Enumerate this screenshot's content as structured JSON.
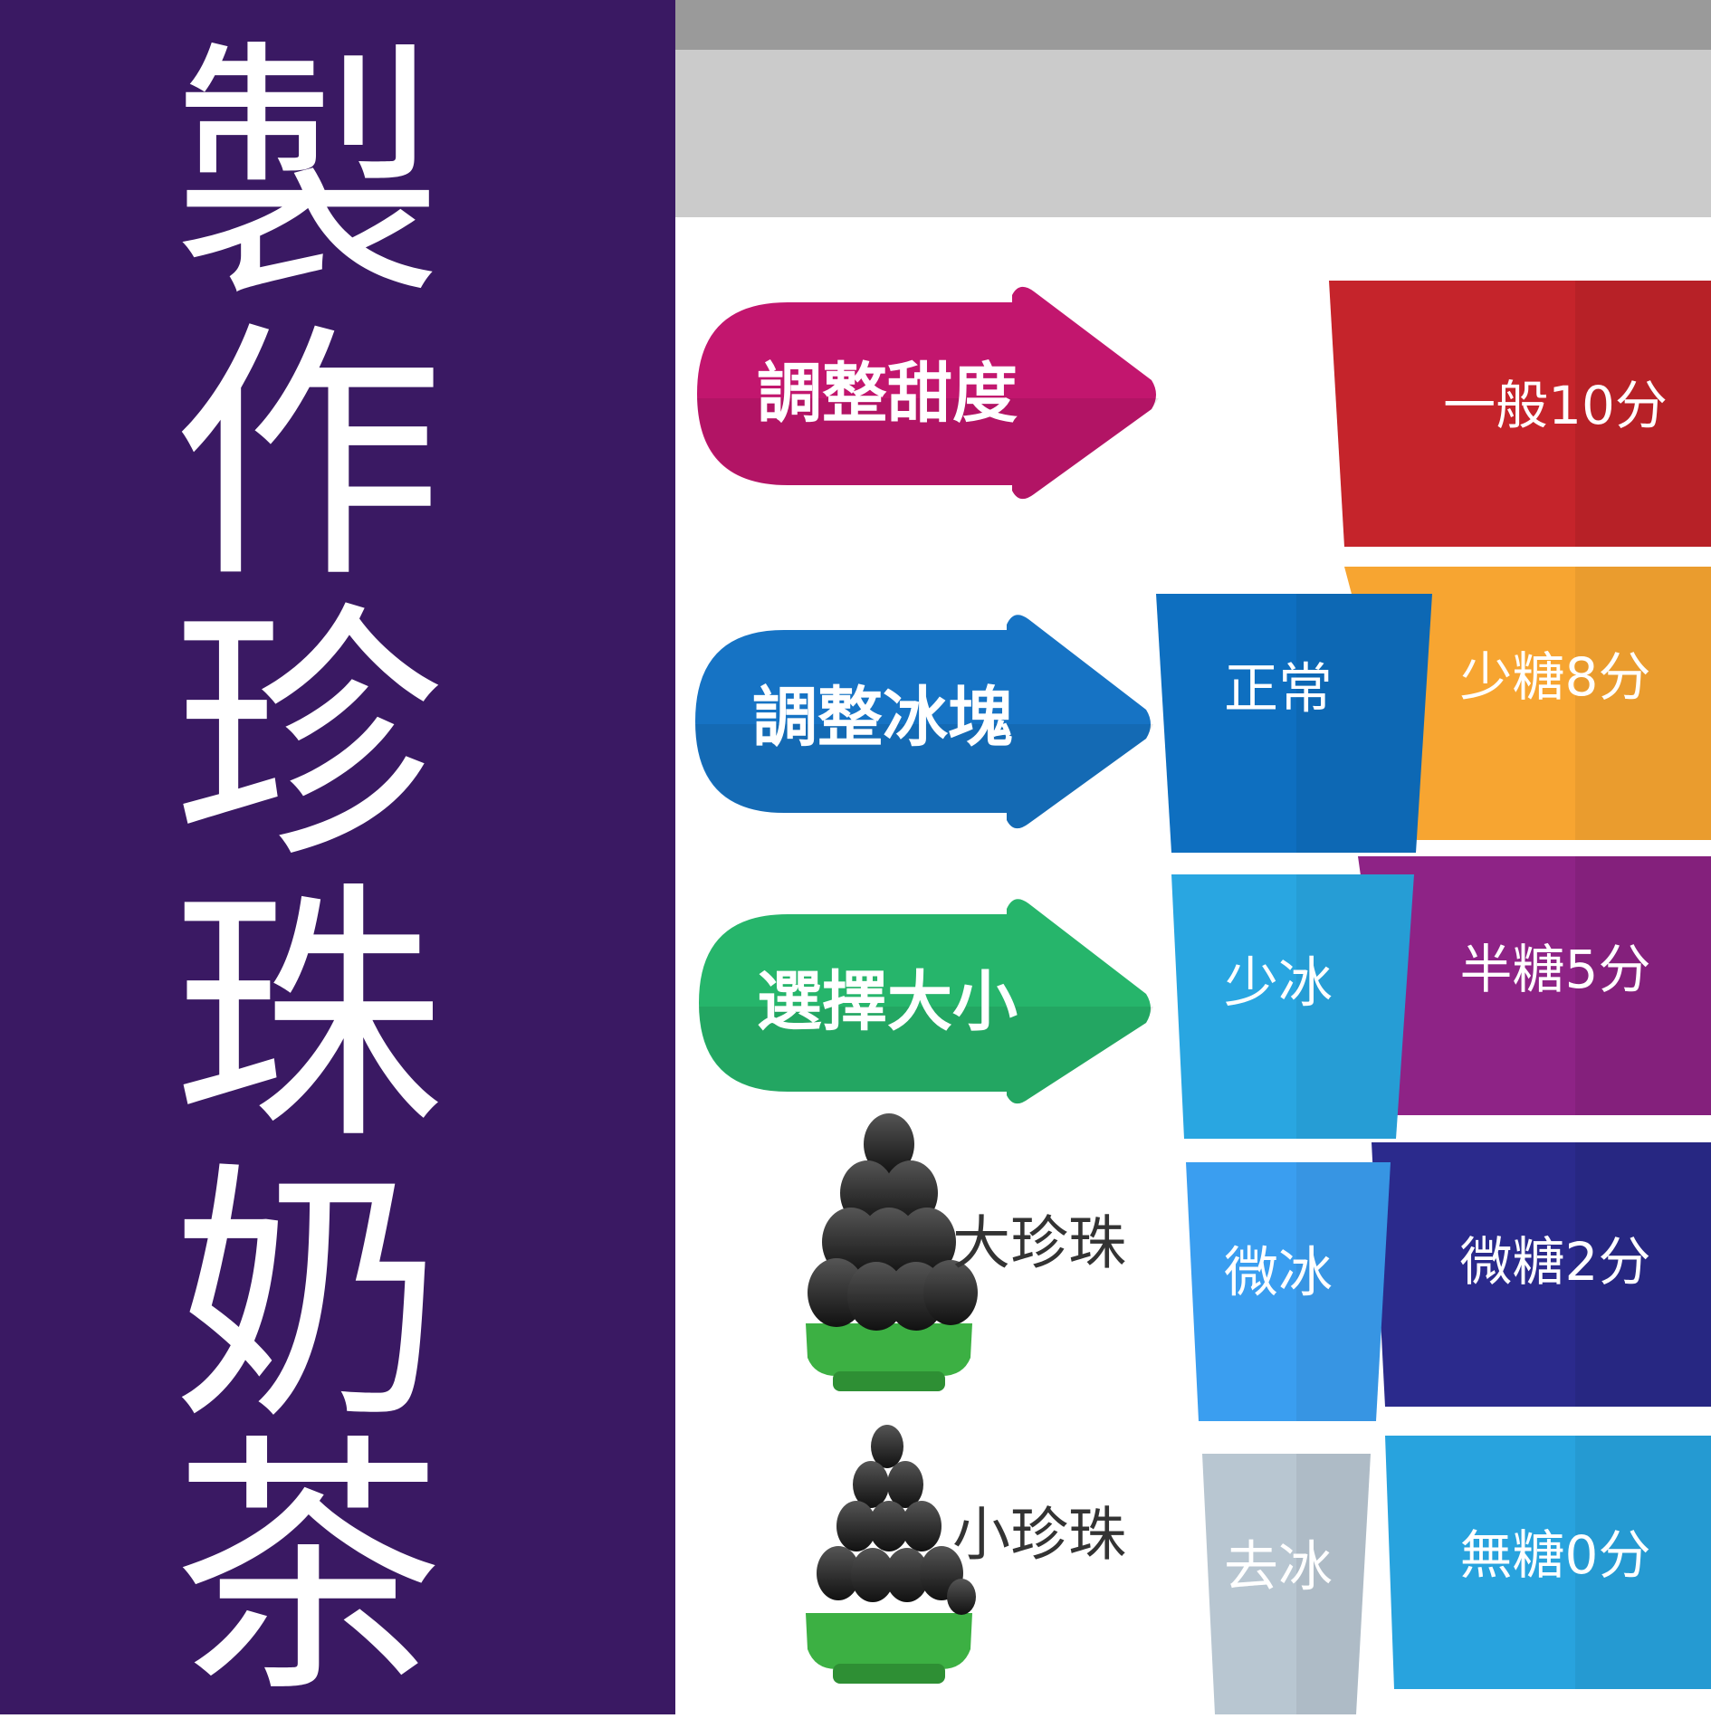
{
  "title_chars": [
    "製",
    "作",
    "珍",
    "珠",
    "奶",
    "茶"
  ],
  "commands": [
    {
      "label": "調整甜度",
      "color": "#c2166e"
    },
    {
      "label": "調整冰塊",
      "color": "#1673c4"
    },
    {
      "label": "選擇大小",
      "color": "#26b56b"
    }
  ],
  "pearls": [
    {
      "label": "大珍珠",
      "icon": "large-pearl-icon"
    },
    {
      "label": "小珍珠",
      "icon": "small-pearl-icon"
    }
  ],
  "ice_options": [
    {
      "label": "正常",
      "color": "#0e6fc0"
    },
    {
      "label": "少冰",
      "color": "#29a6e1"
    },
    {
      "label": "微冰",
      "color": "#3a9ef0"
    },
    {
      "label": "去冰",
      "color": "#b8c6d1"
    }
  ],
  "sugar_options": [
    {
      "label": "一般10分",
      "color": "#c5242b"
    },
    {
      "label": "少糖8分",
      "color": "#f7a531"
    },
    {
      "label": "半糖5分",
      "color": "#8e2386"
    },
    {
      "label": "微糖2分",
      "color": "#2b2a8c"
    },
    {
      "label": "無糖0分",
      "color": "#28a3de"
    }
  ]
}
